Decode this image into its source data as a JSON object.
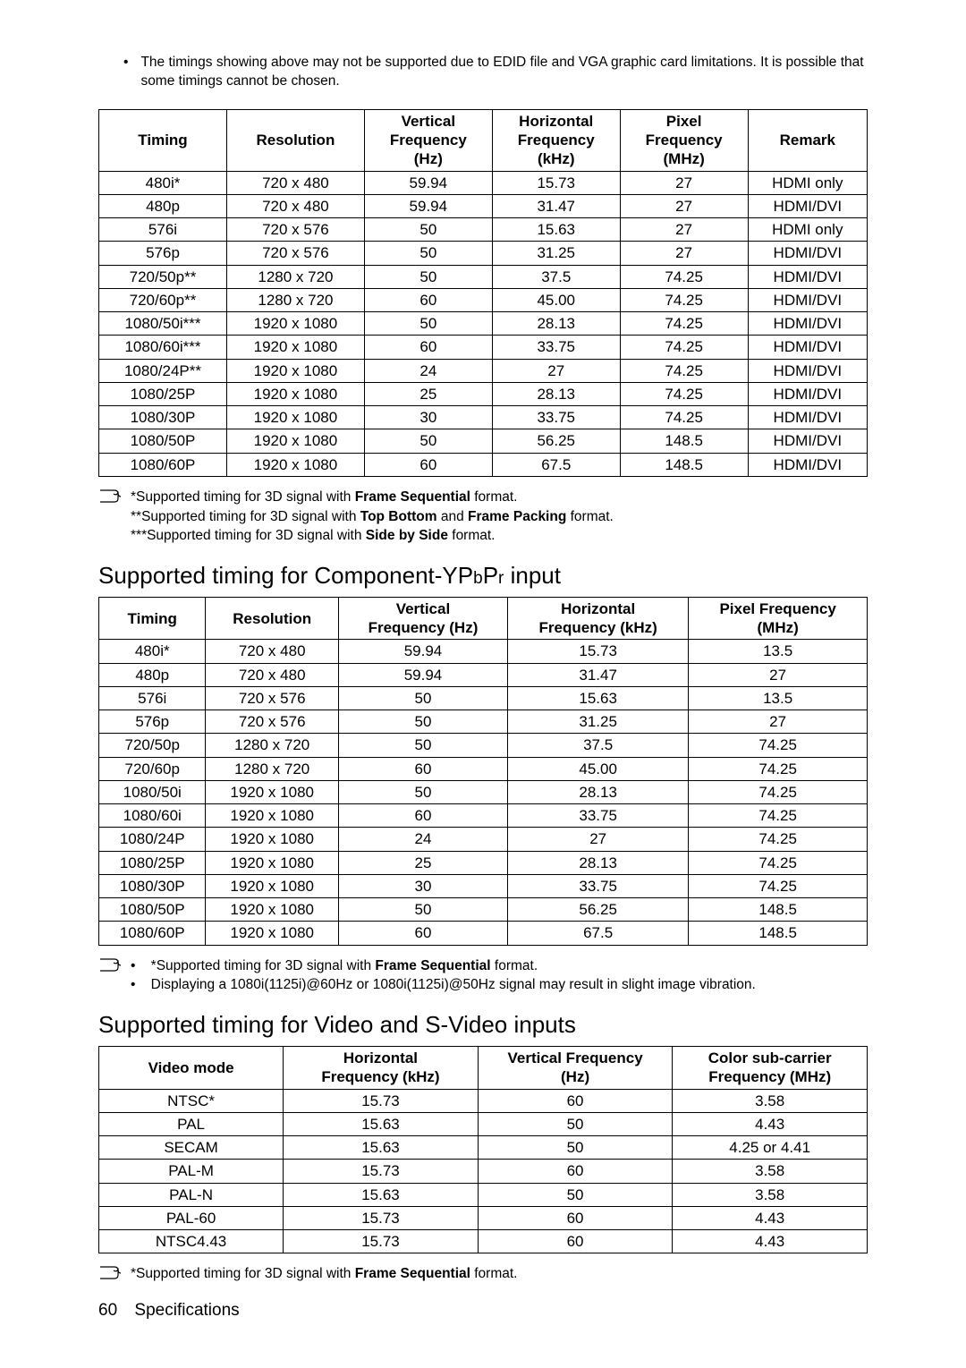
{
  "top_note": "The timings showing above may not be supported due to EDID file and VGA graphic card limitations. It is possible that some timings cannot be chosen.",
  "table1": {
    "headers": [
      "Timing",
      "Resolution",
      "Vertical\nFrequency\n(Hz)",
      "Horizontal\nFrequency\n(kHz)",
      "Pixel\nFrequency\n(MHz)",
      "Remark"
    ],
    "rows": [
      [
        "480i*",
        "720 x 480",
        "59.94",
        "15.73",
        "27",
        "HDMI only"
      ],
      [
        "480p",
        "720 x 480",
        "59.94",
        "31.47",
        "27",
        "HDMI/DVI"
      ],
      [
        "576i",
        "720 x 576",
        "50",
        "15.63",
        "27",
        "HDMI only"
      ],
      [
        "576p",
        "720 x 576",
        "50",
        "31.25",
        "27",
        "HDMI/DVI"
      ],
      [
        "720/50p**",
        "1280 x 720",
        "50",
        "37.5",
        "74.25",
        "HDMI/DVI"
      ],
      [
        "720/60p**",
        "1280 x 720",
        "60",
        "45.00",
        "74.25",
        "HDMI/DVI"
      ],
      [
        "1080/50i***",
        "1920 x 1080",
        "50",
        "28.13",
        "74.25",
        "HDMI/DVI"
      ],
      [
        "1080/60i***",
        "1920 x 1080",
        "60",
        "33.75",
        "74.25",
        "HDMI/DVI"
      ],
      [
        "1080/24P**",
        "1920 x 1080",
        "24",
        "27",
        "74.25",
        "HDMI/DVI"
      ],
      [
        "1080/25P",
        "1920 x 1080",
        "25",
        "28.13",
        "74.25",
        "HDMI/DVI"
      ],
      [
        "1080/30P",
        "1920 x 1080",
        "30",
        "33.75",
        "74.25",
        "HDMI/DVI"
      ],
      [
        "1080/50P",
        "1920 x 1080",
        "50",
        "56.25",
        "148.5",
        "HDMI/DVI"
      ],
      [
        "1080/60P",
        "1920 x 1080",
        "60",
        "67.5",
        "148.5",
        "HDMI/DVI"
      ]
    ]
  },
  "notes1": [
    {
      "pre": "*Supported timing for 3D signal with ",
      "bold": "Frame Sequential",
      "post": " format."
    },
    {
      "pre": "**Supported timing for 3D signal with ",
      "bold": "Top Bottom",
      "mid": " and ",
      "bold2": "Frame Packing",
      "post": " format."
    },
    {
      "pre": "***Supported timing for 3D signal with ",
      "bold": "Side by Side",
      "post": " format."
    }
  ],
  "heading2": {
    "main": "Supported timing for Component-YP",
    "sub1": "b",
    "mid": "P",
    "sub2": "r",
    "tail": " input"
  },
  "table2": {
    "headers": [
      "Timing",
      "Resolution",
      "Vertical\nFrequency (Hz)",
      "Horizontal\nFrequency (kHz)",
      "Pixel Frequency\n(MHz)"
    ],
    "rows": [
      [
        "480i*",
        "720 x 480",
        "59.94",
        "15.73",
        "13.5"
      ],
      [
        "480p",
        "720 x 480",
        "59.94",
        "31.47",
        "27"
      ],
      [
        "576i",
        "720 x 576",
        "50",
        "15.63",
        "13.5"
      ],
      [
        "576p",
        "720 x 576",
        "50",
        "31.25",
        "27"
      ],
      [
        "720/50p",
        "1280 x 720",
        "50",
        "37.5",
        "74.25"
      ],
      [
        "720/60p",
        "1280 x 720",
        "60",
        "45.00",
        "74.25"
      ],
      [
        "1080/50i",
        "1920 x 1080",
        "50",
        "28.13",
        "74.25"
      ],
      [
        "1080/60i",
        "1920 x 1080",
        "60",
        "33.75",
        "74.25"
      ],
      [
        "1080/24P",
        "1920 x 1080",
        "24",
        "27",
        "74.25"
      ],
      [
        "1080/25P",
        "1920 x 1080",
        "25",
        "28.13",
        "74.25"
      ],
      [
        "1080/30P",
        "1920 x 1080",
        "30",
        "33.75",
        "74.25"
      ],
      [
        "1080/50P",
        "1920 x 1080",
        "50",
        "56.25",
        "148.5"
      ],
      [
        "1080/60P",
        "1920 x 1080",
        "60",
        "67.5",
        "148.5"
      ]
    ]
  },
  "notes2": [
    {
      "bullet": "•",
      "pre": "*Supported timing for 3D signal with ",
      "bold": "Frame Sequential",
      "post": " format."
    },
    {
      "bullet": "•",
      "pre": "Displaying a 1080i(1125i)@60Hz or 1080i(1125i)@50Hz signal may result in slight image vibration.",
      "bold": "",
      "post": ""
    }
  ],
  "heading3": "Supported timing for Video and S-Video inputs",
  "table3": {
    "headers": [
      "Video mode",
      "Horizontal\nFrequency (kHz)",
      "Vertical Frequency\n(Hz)",
      "Color sub-carrier\nFrequency (MHz)"
    ],
    "rows": [
      [
        "NTSC*",
        "15.73",
        "60",
        "3.58"
      ],
      [
        "PAL",
        "15.63",
        "50",
        "4.43"
      ],
      [
        "SECAM",
        "15.63",
        "50",
        "4.25 or 4.41"
      ],
      [
        "PAL-M",
        "15.73",
        "60",
        "3.58"
      ],
      [
        "PAL-N",
        "15.63",
        "50",
        "3.58"
      ],
      [
        "PAL-60",
        "15.73",
        "60",
        "4.43"
      ],
      [
        "NTSC4.43",
        "15.73",
        "60",
        "4.43"
      ]
    ]
  },
  "notes3": [
    {
      "pre": "*Supported timing for 3D signal with ",
      "bold": "Frame Sequential",
      "post": " format."
    }
  ],
  "footer": {
    "page": "60",
    "label": "Specifications"
  }
}
